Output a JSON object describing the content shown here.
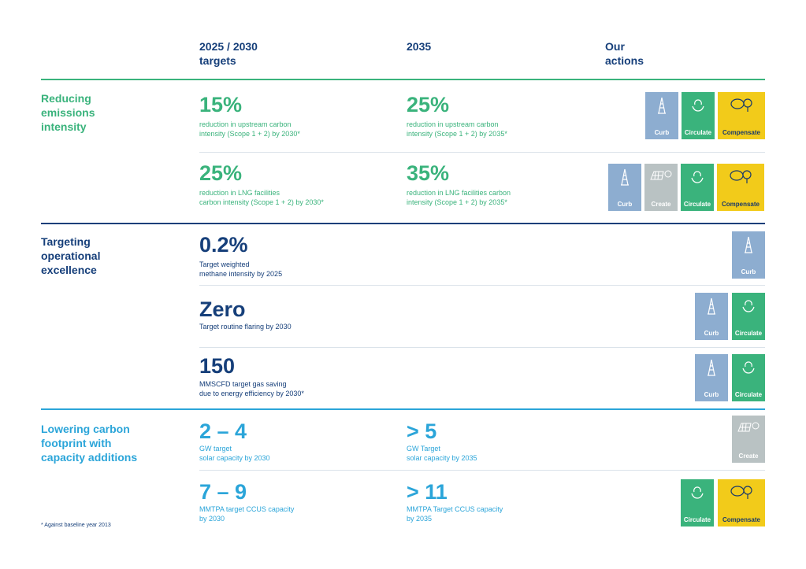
{
  "headers": {
    "col1": "2025 / 2030\ntargets",
    "col2": "2035",
    "col3": "Our\nactions"
  },
  "tile_labels": {
    "curb": "Curb",
    "create": "Create",
    "circulate": "Circulate",
    "compensate": "Compensate"
  },
  "icons": {
    "curb": "oil-rig-icon",
    "create": "solar-panel-icon",
    "circulate": "recycle-hands-icon",
    "compensate": "co2-tree-icon"
  },
  "colors": {
    "green": "#3ab37c",
    "navy": "#163f7a",
    "cyan": "#2ba5d9",
    "curb": "#8dadd0",
    "create": "#b9c2c3",
    "circulate": "#3ab37c",
    "compensate": "#f2cb1a"
  },
  "sections": {
    "reducing": {
      "title": "Reducing\nemissions\nintensity",
      "rows": [
        {
          "v1": "15%",
          "d1": "reduction in upstream carbon\nintensity (Scope 1 + 2) by 2030*",
          "v2": "25%",
          "d2": "reduction in upstream carbon\nintensity (Scope 1 + 2) by 2035*"
        },
        {
          "v1": "25%",
          "d1": "reduction in LNG facilities\ncarbon intensity (Scope 1 + 2) by 2030*",
          "v2": "35%",
          "d2": "reduction in LNG facilities carbon\nintensity (Scope 1 + 2) by 2035*"
        }
      ]
    },
    "targeting": {
      "title": "Targeting\noperational\nexcellence",
      "rows": [
        {
          "v1": "0.2%",
          "d1": "Target weighted\nmethane intensity by 2025"
        },
        {
          "v1": "Zero",
          "d1": "Target routine flaring by 2030"
        },
        {
          "v1": "150",
          "d1": "MMSCFD target gas saving\ndue to energy efficiency by 2030*"
        }
      ]
    },
    "lowering": {
      "title": "Lowering carbon\nfootprint with\ncapacity additions",
      "rows": [
        {
          "v1": "2 – 4",
          "d1": "GW target\nsolar capacity by 2030",
          "v2": "> 5",
          "d2": "GW Target\nsolar capacity by 2035"
        },
        {
          "v1": "7 – 9",
          "d1": "MMTPA target CCUS capacity\nby 2030",
          "v2": "> 11",
          "d2": "MMTPA Target CCUS capacity\nby 2035"
        }
      ]
    }
  },
  "footnote": "* Against baseline year 2013"
}
